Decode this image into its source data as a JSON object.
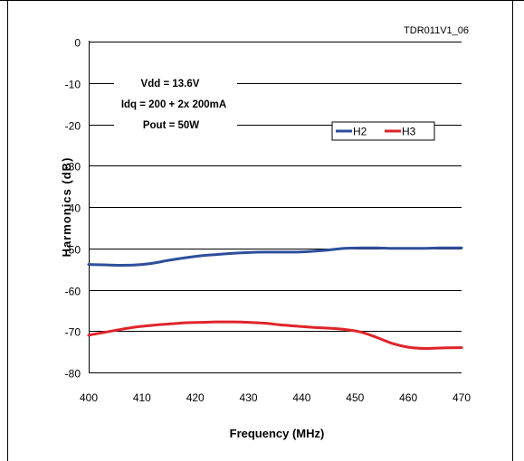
{
  "figure": {
    "id_label": "TDR011V1_06",
    "notes": [
      "Vdd = 13.6V",
      "Idq = 200 + 2x 200mA",
      "Pout = 50W"
    ]
  },
  "colors": {
    "H2": "#2e4f9c",
    "H3": "#e0242a",
    "axis": "#000000",
    "grid": "#000000"
  },
  "chart_data": {
    "type": "line",
    "title": "",
    "xlabel": "Frequency (MHz)",
    "ylabel": "Harmonics (dB)",
    "xlim": [
      400,
      470
    ],
    "ylim": [
      -80,
      0
    ],
    "xticks": [
      400,
      410,
      420,
      430,
      440,
      450,
      460,
      470
    ],
    "yticks": [
      0,
      -10,
      -20,
      -30,
      -40,
      -50,
      -60,
      -70,
      -80
    ],
    "grid": "horizontal",
    "legend_position": "upper-right",
    "series": [
      {
        "name": "H2",
        "color": "#2e4f9c",
        "x": [
          400,
          403,
          406,
          409,
          412,
          415,
          418,
          421,
          424,
          427,
          430,
          433,
          436,
          439,
          442,
          445,
          448,
          451,
          454,
          457,
          460,
          463,
          466,
          470
        ],
        "y": [
          -53.9,
          -54.0,
          -54.1,
          -54.0,
          -53.6,
          -52.9,
          -52.3,
          -51.8,
          -51.5,
          -51.2,
          -51.0,
          -50.9,
          -50.9,
          -50.9,
          -50.7,
          -50.4,
          -50.0,
          -49.9,
          -49.9,
          -50.0,
          -50.0,
          -50.0,
          -49.9,
          -49.9
        ]
      },
      {
        "name": "H3",
        "color": "#e0242a",
        "x": [
          400,
          403,
          406,
          409,
          412,
          415,
          418,
          421,
          424,
          427,
          430,
          433,
          436,
          439,
          442,
          445,
          448,
          451,
          454,
          457,
          460,
          463,
          466,
          470
        ],
        "y": [
          -71.0,
          -70.3,
          -69.6,
          -69.0,
          -68.6,
          -68.3,
          -68.0,
          -67.9,
          -67.8,
          -67.8,
          -67.9,
          -68.1,
          -68.5,
          -68.8,
          -69.1,
          -69.3,
          -69.6,
          -70.2,
          -71.5,
          -73.0,
          -73.9,
          -74.2,
          -74.1,
          -74.0
        ]
      }
    ]
  }
}
